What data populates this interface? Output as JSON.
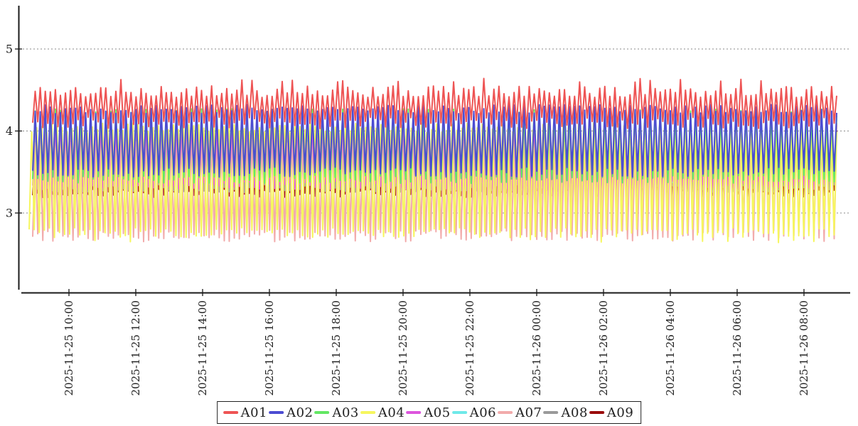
{
  "chart_data": {
    "type": "line",
    "title": "",
    "xlabel": "",
    "ylabel": "",
    "grid": "horizontal dashed gridlines at each y tick",
    "legend_position": "bottom-center",
    "background_color": "#ffffff",
    "axis_color": "#1a1a1a",
    "gridline_color": "#8a8a8a",
    "tick_label_color": "#222222",
    "x_axis": {
      "tick_labels": [
        "2025-11-25 10:00",
        "2025-11-25 12:00",
        "2025-11-25 14:00",
        "2025-11-25 16:00",
        "2025-11-25 18:00",
        "2025-11-25 20:00",
        "2025-11-25 22:00",
        "2025-11-26 00:00",
        "2025-11-26 02:00",
        "2025-11-26 04:00",
        "2025-11-26 06:00",
        "2025-11-26 08:00"
      ],
      "label_rotation_deg": -90,
      "interval": "2 hours",
      "data_time_span": [
        "2025-11-25 09:00",
        "2025-11-26 09:00"
      ]
    },
    "y_axis": {
      "tick_labels": [
        "5",
        "4",
        "3"
      ],
      "tick_values": [
        5,
        4,
        3
      ],
      "ylim": [
        2.05,
        5.5
      ]
    },
    "points_per_series": 320,
    "note": "Each series is a dense high-frequency oscillation (~160 cycles over 24h). Values below are the per-series oscillation envelopes read from the plot; exact sample values are reconstructed as a jittered triangle wave between low and high.",
    "series": [
      {
        "name": "A01",
        "color": "#ee5454",
        "low": 4.1,
        "high": 4.48,
        "jitter": 0.07,
        "spike_value": 4.62,
        "spike_prob": 0.12,
        "seed": 11
      },
      {
        "name": "A02",
        "color": "#4c4cd2",
        "low": 3.5,
        "high": 4.27,
        "jitter": 0.06,
        "seed": 22
      },
      {
        "name": "A03",
        "color": "#63e763",
        "low": 3.41,
        "high": 4.22,
        "jitter": 0.05,
        "seed": 33
      },
      {
        "name": "A04",
        "color": "#f6f65e",
        "low": 2.76,
        "high": 4.04,
        "jitter": 0.06,
        "deep_value": 2.66,
        "deep_prob": 0.07,
        "seed": 44
      },
      {
        "name": "A05",
        "color": "#dd55dd",
        "low": 3.34,
        "high": 4.12,
        "jitter": 0.05,
        "seed": 55
      },
      {
        "name": "A06",
        "color": "#6fe9e9",
        "low": 3.42,
        "high": 4.18,
        "jitter": 0.05,
        "seed": 66
      },
      {
        "name": "A07",
        "color": "#f2abab",
        "low": 2.72,
        "high": 3.92,
        "jitter": 0.07,
        "seed": 77
      },
      {
        "name": "A08",
        "color": "#9a9a9a",
        "low": 3.3,
        "high": 4.06,
        "jitter": 0.05,
        "seed": 88
      },
      {
        "name": "A09",
        "color": "#9a0a0a",
        "low": 3.24,
        "high": 3.98,
        "jitter": 0.05,
        "seed": 99
      }
    ],
    "draw_order": "A09 painted first, A01 painted last (A01 on top)"
  },
  "legend": {
    "border_color": "#222222",
    "background": "#ffffff"
  }
}
